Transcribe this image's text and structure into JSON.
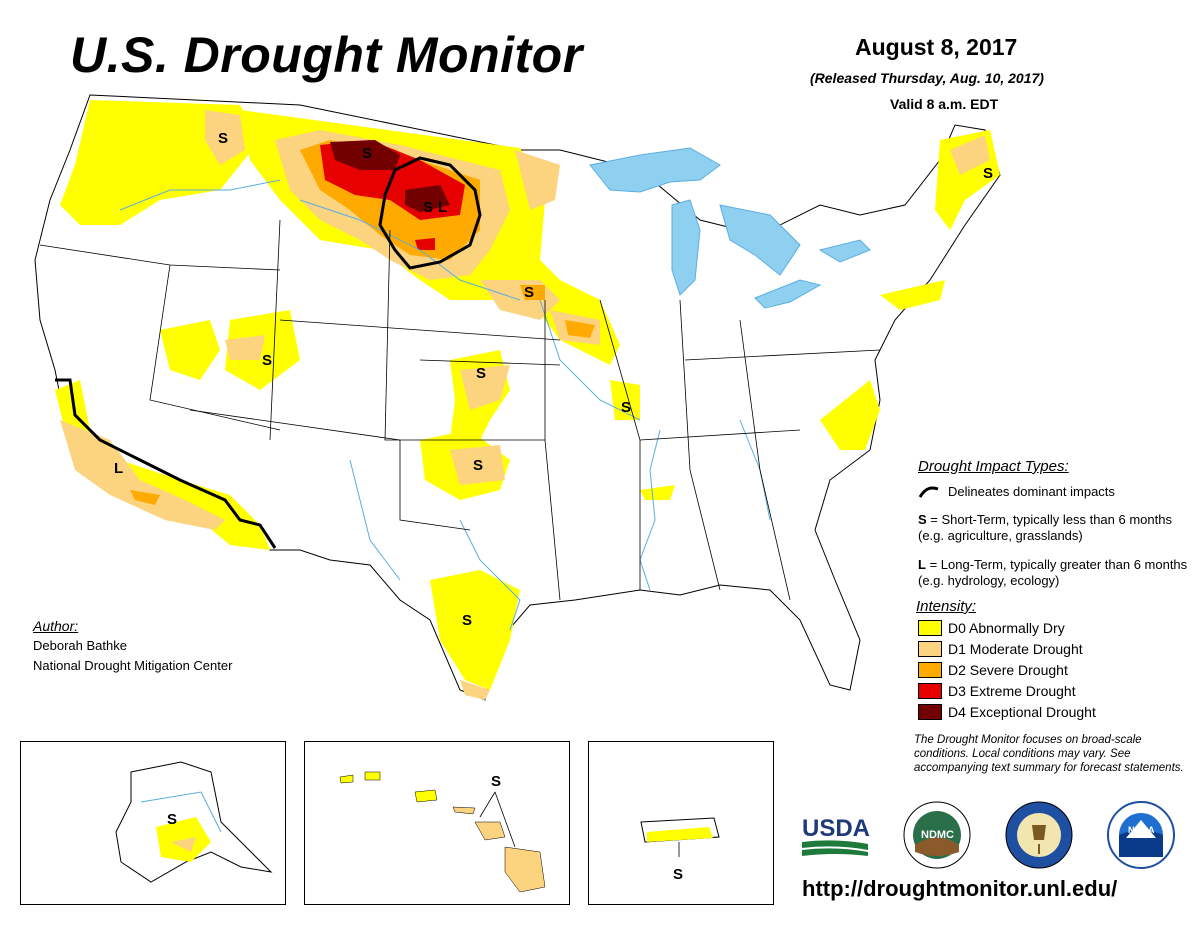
{
  "header": {
    "title": "U.S. Drought Monitor",
    "date": "August 8, 2017",
    "released": "(Released Thursday, Aug. 10, 2017)",
    "valid": "Valid 8 a.m. EDT"
  },
  "impacts": {
    "title": "Drought Impact Types:",
    "delineates": "Delineates dominant impacts",
    "short_letter": "S",
    "short_text": " = Short-Term, typically less than 6 months (e.g. agriculture, grasslands)",
    "long_letter": "L",
    "long_text": " = Long-Term, typically greater than 6 months (e.g. hydrology, ecology)"
  },
  "intensity": {
    "title": "Intensity:",
    "items": [
      {
        "label": "D0 Abnormally Dry",
        "color": "#ffff00"
      },
      {
        "label": "D1 Moderate Drought",
        "color": "#fcd37f"
      },
      {
        "label": "D2 Severe Drought",
        "color": "#ffaa00"
      },
      {
        "label": "D3 Extreme Drought",
        "color": "#e60000"
      },
      {
        "label": "D4 Exceptional Drought",
        "color": "#730000"
      }
    ]
  },
  "note": "The Drought Monitor focuses on broad-scale conditions. Local conditions may vary. See accompanying text summary for forecast statements.",
  "author": {
    "title": "Author:",
    "name": "Deborah Bathke",
    "org": "National Drought Mitigation Center"
  },
  "map_labels": {
    "s": "S",
    "l": "L"
  },
  "logos": {
    "usda": "USDA",
    "ndmc": "NDMC",
    "noaa": "NOAA"
  },
  "url": "http://droughtmonitor.unl.edu/",
  "colors": {
    "water": "#8fd0f0",
    "river": "#5aaee0",
    "border": "#000000"
  }
}
